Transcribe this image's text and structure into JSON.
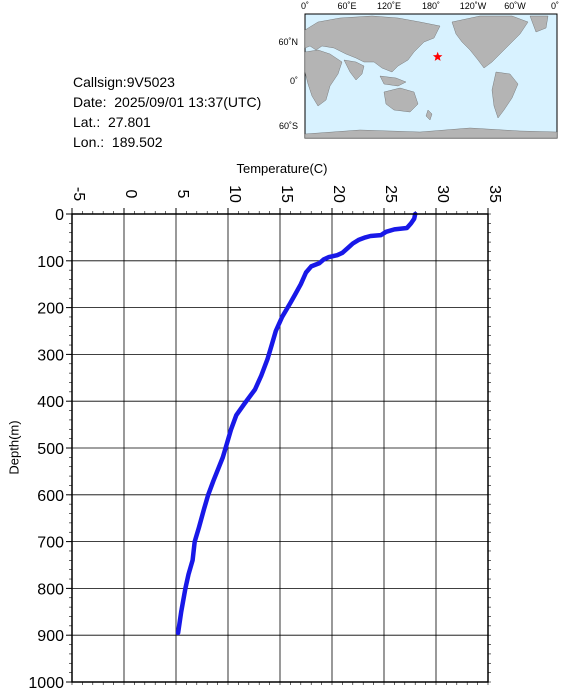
{
  "info": {
    "callsign": "Callsign:9V5023",
    "date": "Date:  2025/09/01 13:37(UTC)",
    "lat": "Lat.:  27.801",
    "lon": "Lon.:  189.502"
  },
  "map": {
    "lon_labels": [
      "0˚",
      "60˚E",
      "120˚E",
      "180˚",
      "120˚W",
      "60˚W",
      "0˚"
    ],
    "lat_labels": [
      "60˚N",
      "0˚",
      "60˚S"
    ],
    "marker_lat": 27.801,
    "marker_lon": 189.502,
    "colors": {
      "ocean": "#d8f2ff",
      "land": "#b4b4b4",
      "marker": "#ff0000"
    }
  },
  "chart_data": {
    "type": "line",
    "xlabel": "Temperature(C)",
    "ylabel": "Depth(m)",
    "xlim": [
      -5,
      35
    ],
    "ylim": [
      1000,
      0
    ],
    "x_ticks": [
      "-5",
      "0",
      "5",
      "10",
      "15",
      "20",
      "25",
      "30",
      "35"
    ],
    "y_ticks": [
      "0",
      "100",
      "200",
      "300",
      "400",
      "500",
      "600",
      "700",
      "800",
      "900",
      "1000"
    ],
    "grid": true,
    "series": [
      {
        "color": "#1818e8",
        "points": [
          [
            28.0,
            0
          ],
          [
            27.9,
            10
          ],
          [
            27.6,
            20
          ],
          [
            27.2,
            30
          ],
          [
            26.0,
            33
          ],
          [
            25.2,
            38
          ],
          [
            24.7,
            45
          ],
          [
            23.7,
            47
          ],
          [
            23.2,
            50
          ],
          [
            22.6,
            55
          ],
          [
            22.0,
            63
          ],
          [
            21.5,
            73
          ],
          [
            21.0,
            83
          ],
          [
            20.5,
            88
          ],
          [
            19.7,
            92
          ],
          [
            19.2,
            97
          ],
          [
            18.8,
            105
          ],
          [
            18.0,
            112
          ],
          [
            17.5,
            125
          ],
          [
            17.0,
            150
          ],
          [
            16.5,
            170
          ],
          [
            16.0,
            190
          ],
          [
            15.2,
            220
          ],
          [
            14.6,
            250
          ],
          [
            14.2,
            280
          ],
          [
            13.8,
            310
          ],
          [
            13.2,
            345
          ],
          [
            12.6,
            375
          ],
          [
            11.6,
            405
          ],
          [
            10.8,
            430
          ],
          [
            10.3,
            460
          ],
          [
            9.9,
            490
          ],
          [
            9.5,
            520
          ],
          [
            8.6,
            570
          ],
          [
            8.1,
            600
          ],
          [
            7.7,
            630
          ],
          [
            7.2,
            670
          ],
          [
            6.8,
            700
          ],
          [
            6.6,
            740
          ],
          [
            6.2,
            770
          ],
          [
            5.9,
            800
          ],
          [
            5.5,
            850
          ],
          [
            5.2,
            895
          ]
        ]
      }
    ]
  }
}
